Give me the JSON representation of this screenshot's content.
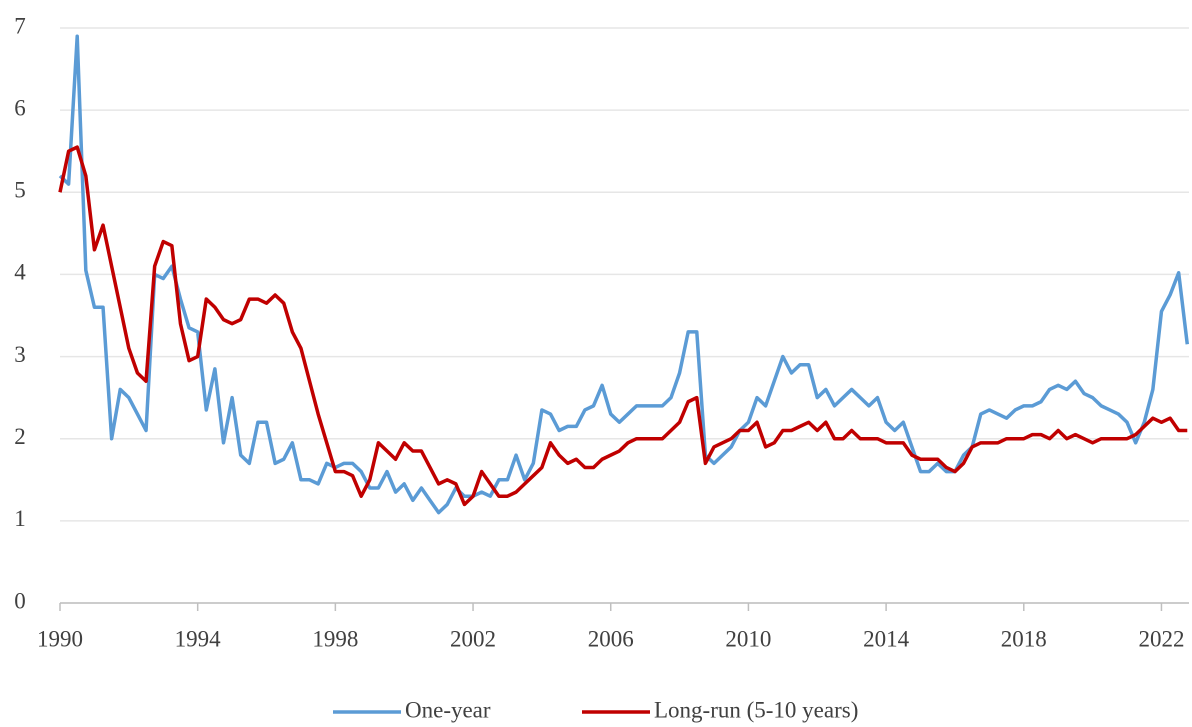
{
  "chart_data": {
    "type": "line",
    "x": [
      1990,
      1990.25,
      1990.5,
      1990.75,
      1991,
      1991.25,
      1991.5,
      1991.75,
      1992,
      1992.25,
      1992.5,
      1992.75,
      1993,
      1993.25,
      1993.5,
      1993.75,
      1994,
      1994.25,
      1994.5,
      1994.75,
      1995,
      1995.25,
      1995.5,
      1995.75,
      1996,
      1996.25,
      1996.5,
      1996.75,
      1997,
      1997.25,
      1997.5,
      1997.75,
      1998,
      1998.25,
      1998.5,
      1998.75,
      1999,
      1999.25,
      1999.5,
      1999.75,
      2000,
      2000.25,
      2000.5,
      2000.75,
      2001,
      2001.25,
      2001.5,
      2001.75,
      2002,
      2002.25,
      2002.5,
      2002.75,
      2003,
      2003.25,
      2003.5,
      2003.75,
      2004,
      2004.25,
      2004.5,
      2004.75,
      2005,
      2005.25,
      2005.5,
      2005.75,
      2006,
      2006.25,
      2006.5,
      2006.75,
      2007,
      2007.25,
      2007.5,
      2007.75,
      2008,
      2008.25,
      2008.5,
      2008.75,
      2009,
      2009.25,
      2009.5,
      2009.75,
      2010,
      2010.25,
      2010.5,
      2010.75,
      2011,
      2011.25,
      2011.5,
      2011.75,
      2012,
      2012.25,
      2012.5,
      2012.75,
      2013,
      2013.25,
      2013.5,
      2013.75,
      2014,
      2014.25,
      2014.5,
      2014.75,
      2015,
      2015.25,
      2015.5,
      2015.75,
      2016,
      2016.25,
      2016.5,
      2016.75,
      2017,
      2017.25,
      2017.5,
      2017.75,
      2018,
      2018.25,
      2018.5,
      2018.75,
      2019,
      2019.25,
      2019.5,
      2019.75,
      2020,
      2020.25,
      2020.5,
      2020.75,
      2021,
      2021.25,
      2021.5,
      2021.75,
      2022,
      2022.25,
      2022.5,
      2022.75
    ],
    "series": [
      {
        "name": "One-year",
        "color": "#5b9bd5",
        "values": [
          5.2,
          5.1,
          6.9,
          4.05,
          3.6,
          3.6,
          2.0,
          2.6,
          2.5,
          2.3,
          2.1,
          4.0,
          3.95,
          4.1,
          3.7,
          3.35,
          3.3,
          2.35,
          2.85,
          1.95,
          2.5,
          1.8,
          1.7,
          2.2,
          2.2,
          1.7,
          1.75,
          1.95,
          1.5,
          1.5,
          1.45,
          1.7,
          1.65,
          1.7,
          1.7,
          1.6,
          1.4,
          1.4,
          1.6,
          1.35,
          1.45,
          1.25,
          1.4,
          1.25,
          1.1,
          1.2,
          1.4,
          1.3,
          1.3,
          1.35,
          1.3,
          1.5,
          1.5,
          1.8,
          1.5,
          1.7,
          2.35,
          2.3,
          2.1,
          2.15,
          2.15,
          2.35,
          2.4,
          2.65,
          2.3,
          2.2,
          2.3,
          2.4,
          2.4,
          2.4,
          2.4,
          2.5,
          2.8,
          3.3,
          3.3,
          1.8,
          1.7,
          1.8,
          1.9,
          2.1,
          2.2,
          2.5,
          2.4,
          2.7,
          3.0,
          2.8,
          2.9,
          2.9,
          2.5,
          2.6,
          2.4,
          2.5,
          2.6,
          2.5,
          2.4,
          2.5,
          2.2,
          2.1,
          2.2,
          1.9,
          1.6,
          1.6,
          1.7,
          1.6,
          1.6,
          1.8,
          1.9,
          2.3,
          2.35,
          2.3,
          2.25,
          2.35,
          2.4,
          2.4,
          2.45,
          2.6,
          2.65,
          2.6,
          2.7,
          2.55,
          2.5,
          2.4,
          2.35,
          2.3,
          2.2,
          1.95,
          2.2,
          2.6,
          3.55,
          3.75,
          4.02,
          3.15
        ]
      },
      {
        "name": "Long-run (5-10 years)",
        "color": "#c00000",
        "values": [
          5.0,
          5.5,
          5.55,
          5.2,
          4.3,
          4.6,
          4.1,
          3.6,
          3.1,
          2.8,
          2.7,
          4.1,
          4.4,
          4.35,
          3.4,
          2.95,
          3.0,
          3.7,
          3.6,
          3.45,
          3.4,
          3.45,
          3.7,
          3.7,
          3.65,
          3.75,
          3.65,
          3.3,
          3.1,
          2.7,
          2.3,
          1.95,
          1.6,
          1.6,
          1.55,
          1.3,
          1.5,
          1.95,
          1.85,
          1.75,
          1.95,
          1.85,
          1.85,
          1.65,
          1.45,
          1.5,
          1.45,
          1.2,
          1.3,
          1.6,
          1.45,
          1.3,
          1.3,
          1.35,
          1.45,
          1.55,
          1.65,
          1.95,
          1.8,
          1.7,
          1.75,
          1.65,
          1.65,
          1.75,
          1.8,
          1.85,
          1.95,
          2.0,
          2.0,
          2.0,
          2.0,
          2.1,
          2.2,
          2.45,
          2.5,
          1.7,
          1.9,
          1.95,
          2.0,
          2.1,
          2.1,
          2.2,
          1.9,
          1.95,
          2.1,
          2.1,
          2.15,
          2.2,
          2.1,
          2.2,
          2.0,
          2.0,
          2.1,
          2.0,
          2.0,
          2.0,
          1.95,
          1.95,
          1.95,
          1.8,
          1.75,
          1.75,
          1.75,
          1.65,
          1.6,
          1.7,
          1.9,
          1.95,
          1.95,
          1.95,
          2.0,
          2.0,
          2.0,
          2.05,
          2.05,
          2.0,
          2.1,
          2.0,
          2.05,
          2.0,
          1.95,
          2.0,
          2.0,
          2.0,
          2.0,
          2.05,
          2.15,
          2.25,
          2.2,
          2.25,
          2.1,
          2.1
        ]
      }
    ],
    "xlim": [
      1990,
      2022.8
    ],
    "xticks": [
      1990,
      1994,
      1998,
      2002,
      2006,
      2010,
      2014,
      2018,
      2022
    ],
    "ylim": [
      0,
      7
    ],
    "yticks": [
      0,
      1,
      2,
      3,
      4,
      5,
      6,
      7
    ],
    "grid": true,
    "legend": "bottom"
  }
}
